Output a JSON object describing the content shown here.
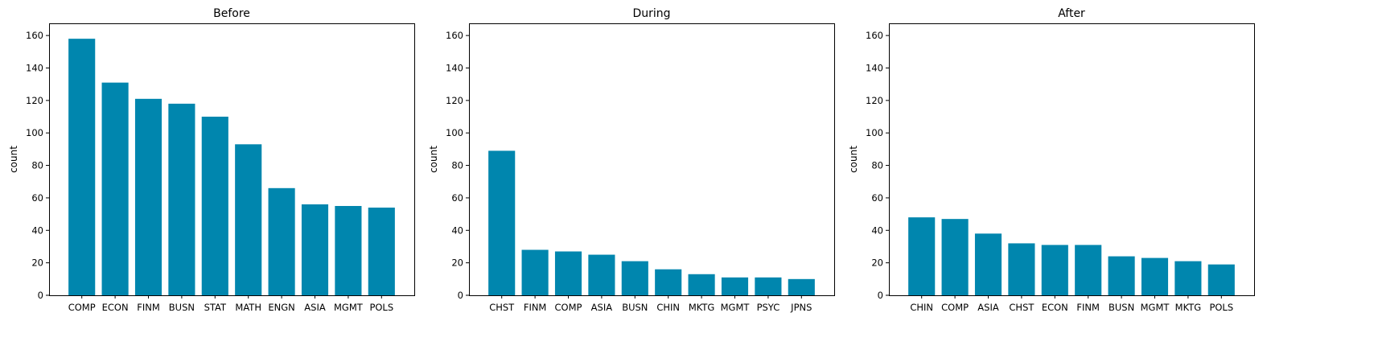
{
  "colors": {
    "bar": "#0086AE"
  },
  "chart_data": [
    {
      "type": "bar",
      "title": "Before",
      "ylabel": "count",
      "ylim": [
        0,
        167
      ],
      "yticks": [
        0,
        20,
        40,
        60,
        80,
        100,
        120,
        140,
        160
      ],
      "categories": [
        "COMP",
        "ECON",
        "FINM",
        "BUSN",
        "STAT",
        "MATH",
        "ENGN",
        "ASIA",
        "MGMT",
        "POLS"
      ],
      "values": [
        158,
        131,
        121,
        118,
        110,
        93,
        66,
        56,
        55,
        54
      ]
    },
    {
      "type": "bar",
      "title": "During",
      "ylabel": "count",
      "ylim": [
        0,
        167
      ],
      "yticks": [
        0,
        20,
        40,
        60,
        80,
        100,
        120,
        140,
        160
      ],
      "categories": [
        "CHST",
        "FINM",
        "COMP",
        "ASIA",
        "BUSN",
        "CHIN",
        "MKTG",
        "MGMT",
        "PSYC",
        "JPNS"
      ],
      "values": [
        89,
        28,
        27,
        25,
        21,
        16,
        13,
        11,
        11,
        10
      ]
    },
    {
      "type": "bar",
      "title": "After",
      "ylabel": "count",
      "ylim": [
        0,
        167
      ],
      "yticks": [
        0,
        20,
        40,
        60,
        80,
        100,
        120,
        140,
        160
      ],
      "categories": [
        "CHIN",
        "COMP",
        "ASIA",
        "CHST",
        "ECON",
        "FINM",
        "BUSN",
        "MGMT",
        "MKTG",
        "POLS"
      ],
      "values": [
        48,
        47,
        38,
        32,
        31,
        31,
        24,
        23,
        21,
        19
      ]
    }
  ]
}
